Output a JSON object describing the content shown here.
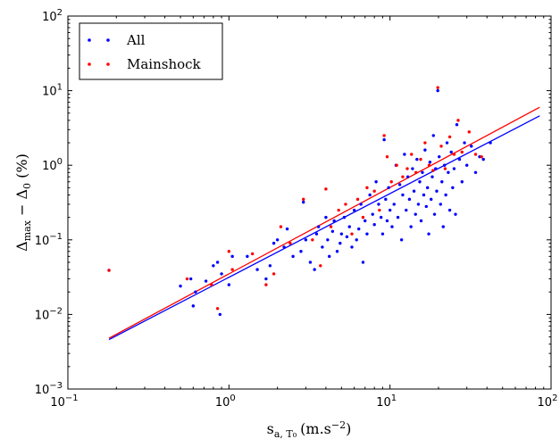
{
  "chart_data": {
    "type": "scatter",
    "title": "",
    "xlabel_base": "s",
    "xlabel_sub": "a, T₀",
    "xlabel_unit": "(m.s",
    "xlabel_unit_sup": "−2",
    "xlabel_unit_end": ")",
    "ylabel_main": "Δ",
    "ylabel_sub1": "max",
    "ylabel_mid": " − Δ",
    "ylabel_sub2": "0",
    "ylabel_unit": " (%)",
    "x_scale": "log",
    "y_scale": "log",
    "xlim": [
      0.1,
      100
    ],
    "ylim": [
      0.001,
      100
    ],
    "x_ticks": [
      {
        "value": 0.1,
        "base": "10",
        "exp": "-1"
      },
      {
        "value": 1,
        "base": "10",
        "exp": "0"
      },
      {
        "value": 10,
        "base": "10",
        "exp": "1"
      },
      {
        "value": 100,
        "base": "10",
        "exp": "2"
      }
    ],
    "y_ticks": [
      {
        "value": 0.001,
        "base": "10",
        "exp": "-3"
      },
      {
        "value": 0.01,
        "base": "10",
        "exp": "-2"
      },
      {
        "value": 0.1,
        "base": "10",
        "exp": "-1"
      },
      {
        "value": 1,
        "base": "10",
        "exp": "0"
      },
      {
        "value": 10,
        "base": "10",
        "exp": "1"
      },
      {
        "value": 100,
        "base": "10",
        "exp": "2"
      }
    ],
    "grid": false,
    "legend_position": "top-left",
    "series": [
      {
        "name": "All",
        "color": "#0000ff",
        "points": [
          [
            0.18,
            0.039
          ],
          [
            0.5,
            0.024
          ],
          [
            0.58,
            0.03
          ],
          [
            0.6,
            0.013
          ],
          [
            0.62,
            0.02
          ],
          [
            0.72,
            0.028
          ],
          [
            0.8,
            0.045
          ],
          [
            0.85,
            0.05
          ],
          [
            0.88,
            0.01
          ],
          [
            0.9,
            0.035
          ],
          [
            1.0,
            0.025
          ],
          [
            1.05,
            0.06
          ],
          [
            1.3,
            0.06
          ],
          [
            1.5,
            0.04
          ],
          [
            1.7,
            0.03
          ],
          [
            1.8,
            0.045
          ],
          [
            1.9,
            0.09
          ],
          [
            2.0,
            0.1
          ],
          [
            2.2,
            0.08
          ],
          [
            2.3,
            0.14
          ],
          [
            2.5,
            0.06
          ],
          [
            2.8,
            0.07
          ],
          [
            2.9,
            0.32
          ],
          [
            3.0,
            0.1
          ],
          [
            3.2,
            0.05
          ],
          [
            3.4,
            0.04
          ],
          [
            3.5,
            0.12
          ],
          [
            3.6,
            0.15
          ],
          [
            3.8,
            0.08
          ],
          [
            4.0,
            0.2
          ],
          [
            4.1,
            0.1
          ],
          [
            4.2,
            0.06
          ],
          [
            4.4,
            0.13
          ],
          [
            4.5,
            0.18
          ],
          [
            4.7,
            0.07
          ],
          [
            4.9,
            0.09
          ],
          [
            5.0,
            0.12
          ],
          [
            5.2,
            0.2
          ],
          [
            5.4,
            0.11
          ],
          [
            5.6,
            0.15
          ],
          [
            5.8,
            0.08
          ],
          [
            6.0,
            0.25
          ],
          [
            6.2,
            0.1
          ],
          [
            6.4,
            0.14
          ],
          [
            6.6,
            0.3
          ],
          [
            6.8,
            0.05
          ],
          [
            7.0,
            0.18
          ],
          [
            7.2,
            0.12
          ],
          [
            7.5,
            0.4
          ],
          [
            7.8,
            0.22
          ],
          [
            8.0,
            0.16
          ],
          [
            8.2,
            0.6
          ],
          [
            8.5,
            0.3
          ],
          [
            8.8,
            0.2
          ],
          [
            9.0,
            0.12
          ],
          [
            9.2,
            2.2
          ],
          [
            9.4,
            0.35
          ],
          [
            9.6,
            0.18
          ],
          [
            9.8,
            0.5
          ],
          [
            10.0,
            0.25
          ],
          [
            10.3,
            0.15
          ],
          [
            10.6,
            0.3
          ],
          [
            10.9,
            1.0
          ],
          [
            11.2,
            0.2
          ],
          [
            11.5,
            0.55
          ],
          [
            11.8,
            0.1
          ],
          [
            12.0,
            0.4
          ],
          [
            12.3,
            1.4
          ],
          [
            12.6,
            0.25
          ],
          [
            12.9,
            0.7
          ],
          [
            13.2,
            0.35
          ],
          [
            13.5,
            0.15
          ],
          [
            13.8,
            0.9
          ],
          [
            14.1,
            0.45
          ],
          [
            14.4,
            0.22
          ],
          [
            14.7,
            1.2
          ],
          [
            15.0,
            0.3
          ],
          [
            15.3,
            0.6
          ],
          [
            15.6,
            0.18
          ],
          [
            15.9,
            0.8
          ],
          [
            16.2,
            0.4
          ],
          [
            16.5,
            1.6
          ],
          [
            16.8,
            0.28
          ],
          [
            17.1,
            0.5
          ],
          [
            17.4,
            0.12
          ],
          [
            17.7,
            1.1
          ],
          [
            18.0,
            0.35
          ],
          [
            18.3,
            0.7
          ],
          [
            18.6,
            2.5
          ],
          [
            18.9,
            0.22
          ],
          [
            19.2,
            0.9
          ],
          [
            19.5,
            0.45
          ],
          [
            19.8,
            10.0
          ],
          [
            20.2,
            1.3
          ],
          [
            20.6,
            0.3
          ],
          [
            21.0,
            0.6
          ],
          [
            21.4,
            0.15
          ],
          [
            21.8,
            1.0
          ],
          [
            22.2,
            0.4
          ],
          [
            22.6,
            2.0
          ],
          [
            23.0,
            0.8
          ],
          [
            23.5,
            0.25
          ],
          [
            24.0,
            1.5
          ],
          [
            24.5,
            0.5
          ],
          [
            25.0,
            0.9
          ],
          [
            25.5,
            0.22
          ],
          [
            26.0,
            3.5
          ],
          [
            27.0,
            1.2
          ],
          [
            28.0,
            0.6
          ],
          [
            29.0,
            2.0
          ],
          [
            30.0,
            1.0
          ],
          [
            32.0,
            1.8
          ],
          [
            34.0,
            0.8
          ],
          [
            36.0,
            1.3
          ],
          [
            38.0,
            1.2
          ],
          [
            42.0,
            2.0
          ]
        ]
      },
      {
        "name": "Mainshock",
        "color": "#ff0000",
        "points": [
          [
            0.18,
            0.039
          ],
          [
            0.55,
            0.03
          ],
          [
            0.78,
            0.025
          ],
          [
            0.85,
            0.012
          ],
          [
            1.0,
            0.07
          ],
          [
            1.05,
            0.04
          ],
          [
            1.4,
            0.065
          ],
          [
            1.7,
            0.025
          ],
          [
            1.9,
            0.035
          ],
          [
            2.1,
            0.15
          ],
          [
            2.4,
            0.09
          ],
          [
            2.9,
            0.35
          ],
          [
            3.3,
            0.1
          ],
          [
            3.7,
            0.045
          ],
          [
            4.0,
            0.48
          ],
          [
            4.3,
            0.15
          ],
          [
            4.8,
            0.25
          ],
          [
            5.3,
            0.3
          ],
          [
            5.8,
            0.12
          ],
          [
            6.3,
            0.35
          ],
          [
            6.8,
            0.2
          ],
          [
            7.2,
            0.5
          ],
          [
            8.0,
            0.45
          ],
          [
            8.6,
            0.25
          ],
          [
            9.2,
            2.5
          ],
          [
            9.6,
            1.3
          ],
          [
            10.2,
            0.6
          ],
          [
            11.0,
            1.0
          ],
          [
            12.0,
            0.7
          ],
          [
            12.8,
            0.9
          ],
          [
            13.6,
            1.4
          ],
          [
            14.5,
            0.8
          ],
          [
            15.5,
            1.2
          ],
          [
            16.5,
            2.0
          ],
          [
            17.5,
            1.0
          ],
          [
            18.5,
            0.85
          ],
          [
            19.8,
            11.0
          ],
          [
            20.8,
            1.8
          ],
          [
            22.0,
            0.9
          ],
          [
            23.5,
            2.4
          ],
          [
            25.0,
            1.4
          ],
          [
            26.5,
            4.0
          ],
          [
            28.0,
            1.5
          ],
          [
            31.0,
            2.8
          ],
          [
            34.0,
            1.4
          ],
          [
            37.0,
            1.3
          ]
        ]
      }
    ],
    "fit_lines": [
      {
        "color": "#0000ff",
        "x": [
          0.18,
          85
        ],
        "y": [
          0.0046,
          4.6
        ]
      },
      {
        "color": "#ff0000",
        "x": [
          0.18,
          85
        ],
        "y": [
          0.0048,
          6.0
        ]
      }
    ]
  }
}
